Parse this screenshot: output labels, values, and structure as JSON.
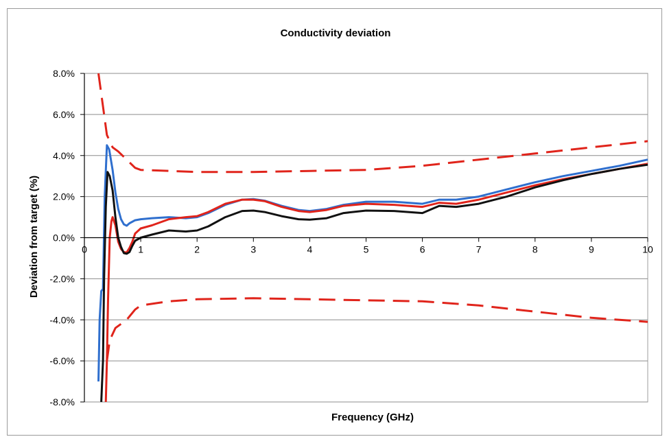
{
  "chart_data": {
    "type": "line",
    "title": "Conductivity deviation",
    "xlabel": "Frequency (GHz)",
    "ylabel": "Deviation from target (%)",
    "xlim": [
      0,
      10
    ],
    "ylim": [
      -8.0,
      8.0
    ],
    "x_ticks": [
      0,
      1,
      2,
      3,
      4,
      5,
      6,
      7,
      8,
      9,
      10
    ],
    "x_tick_labels": [
      "0",
      "1",
      "2",
      "3",
      "4",
      "5",
      "6",
      "7",
      "8",
      "9",
      "10"
    ],
    "y_ticks": [
      8.0,
      6.0,
      4.0,
      2.0,
      0.0,
      -2.0,
      -4.0,
      -6.0,
      -8.0
    ],
    "y_tick_labels": [
      "8.0%",
      "6.0%",
      "4.0%",
      "2.0%",
      "0.0%",
      "-2.0%",
      "-4.0%",
      "-6.0%",
      "-8.0%"
    ],
    "grid": "horizontal",
    "legend": "none",
    "series": [
      {
        "color": "#e0241b",
        "style": "dashed",
        "points": [
          [
            0.25,
            8.0
          ],
          [
            0.3,
            7.0
          ],
          [
            0.35,
            6.0
          ],
          [
            0.4,
            5.0
          ],
          [
            0.5,
            4.4
          ],
          [
            0.6,
            4.2
          ],
          [
            0.75,
            3.8
          ],
          [
            0.9,
            3.4
          ],
          [
            1.0,
            3.3
          ],
          [
            1.5,
            3.25
          ],
          [
            2.0,
            3.2
          ],
          [
            3.0,
            3.2
          ],
          [
            4.0,
            3.25
          ],
          [
            5.0,
            3.3
          ],
          [
            6.0,
            3.5
          ],
          [
            7.0,
            3.8
          ],
          [
            8.0,
            4.1
          ],
          [
            9.0,
            4.4
          ],
          [
            10.0,
            4.7
          ]
        ]
      },
      {
        "color": "#e0241b",
        "style": "dashed",
        "points": [
          [
            0.4,
            -6.0
          ],
          [
            0.45,
            -5.0
          ],
          [
            0.55,
            -4.4
          ],
          [
            0.75,
            -4.0
          ],
          [
            0.9,
            -3.5
          ],
          [
            1.0,
            -3.3
          ],
          [
            1.5,
            -3.1
          ],
          [
            2.0,
            -3.0
          ],
          [
            3.0,
            -2.95
          ],
          [
            4.0,
            -3.0
          ],
          [
            5.0,
            -3.05
          ],
          [
            6.0,
            -3.1
          ],
          [
            7.0,
            -3.3
          ],
          [
            8.0,
            -3.6
          ],
          [
            9.0,
            -3.9
          ],
          [
            10.0,
            -4.1
          ]
        ]
      },
      {
        "color": "#2f6fce",
        "style": "solid",
        "points": [
          [
            0.25,
            -7.0
          ],
          [
            0.27,
            -4.0
          ],
          [
            0.3,
            -2.6
          ],
          [
            0.33,
            -2.5
          ],
          [
            0.36,
            2.0
          ],
          [
            0.4,
            4.5
          ],
          [
            0.44,
            4.3
          ],
          [
            0.5,
            3.3
          ],
          [
            0.55,
            2.2
          ],
          [
            0.6,
            1.4
          ],
          [
            0.65,
            0.9
          ],
          [
            0.7,
            0.65
          ],
          [
            0.75,
            0.58
          ],
          [
            0.8,
            0.7
          ],
          [
            0.9,
            0.85
          ],
          [
            1.0,
            0.9
          ],
          [
            1.2,
            0.95
          ],
          [
            1.5,
            1.0
          ],
          [
            1.8,
            0.95
          ],
          [
            2.0,
            1.0
          ],
          [
            2.2,
            1.2
          ],
          [
            2.5,
            1.6
          ],
          [
            2.8,
            1.85
          ],
          [
            3.0,
            1.88
          ],
          [
            3.2,
            1.8
          ],
          [
            3.5,
            1.55
          ],
          [
            3.8,
            1.35
          ],
          [
            4.0,
            1.3
          ],
          [
            4.3,
            1.4
          ],
          [
            4.6,
            1.6
          ],
          [
            5.0,
            1.75
          ],
          [
            5.5,
            1.75
          ],
          [
            6.0,
            1.65
          ],
          [
            6.3,
            1.85
          ],
          [
            6.6,
            1.85
          ],
          [
            7.0,
            2.0
          ],
          [
            7.5,
            2.35
          ],
          [
            8.0,
            2.7
          ],
          [
            8.5,
            3.0
          ],
          [
            9.0,
            3.25
          ],
          [
            9.5,
            3.5
          ],
          [
            10.0,
            3.8
          ]
        ]
      },
      {
        "color": "#e0241b",
        "style": "solid",
        "points": [
          [
            0.38,
            -8.0
          ],
          [
            0.4,
            -6.0
          ],
          [
            0.42,
            -3.0
          ],
          [
            0.45,
            0.0
          ],
          [
            0.48,
            0.8
          ],
          [
            0.5,
            1.0
          ],
          [
            0.55,
            0.6
          ],
          [
            0.6,
            -0.2
          ],
          [
            0.65,
            -0.55
          ],
          [
            0.7,
            -0.7
          ],
          [
            0.75,
            -0.72
          ],
          [
            0.8,
            -0.5
          ],
          [
            0.85,
            -0.2
          ],
          [
            0.9,
            0.2
          ],
          [
            1.0,
            0.45
          ],
          [
            1.2,
            0.6
          ],
          [
            1.5,
            0.9
          ],
          [
            1.8,
            1.0
          ],
          [
            2.0,
            1.05
          ],
          [
            2.2,
            1.25
          ],
          [
            2.5,
            1.65
          ],
          [
            2.8,
            1.85
          ],
          [
            3.0,
            1.85
          ],
          [
            3.2,
            1.78
          ],
          [
            3.5,
            1.5
          ],
          [
            3.8,
            1.3
          ],
          [
            4.0,
            1.25
          ],
          [
            4.3,
            1.35
          ],
          [
            4.6,
            1.55
          ],
          [
            5.0,
            1.65
          ],
          [
            5.5,
            1.6
          ],
          [
            6.0,
            1.5
          ],
          [
            6.3,
            1.7
          ],
          [
            6.6,
            1.65
          ],
          [
            7.0,
            1.85
          ],
          [
            7.5,
            2.2
          ],
          [
            8.0,
            2.55
          ],
          [
            8.5,
            2.85
          ],
          [
            9.0,
            3.1
          ],
          [
            9.5,
            3.35
          ],
          [
            10.0,
            3.6
          ]
        ]
      },
      {
        "color": "#111111",
        "style": "solid",
        "points": [
          [
            0.3,
            -8.0
          ],
          [
            0.33,
            -6.0
          ],
          [
            0.35,
            -2.0
          ],
          [
            0.38,
            1.5
          ],
          [
            0.41,
            3.2
          ],
          [
            0.45,
            3.0
          ],
          [
            0.5,
            2.3
          ],
          [
            0.55,
            1.0
          ],
          [
            0.6,
            0.0
          ],
          [
            0.65,
            -0.45
          ],
          [
            0.7,
            -0.75
          ],
          [
            0.75,
            -0.78
          ],
          [
            0.8,
            -0.7
          ],
          [
            0.85,
            -0.4
          ],
          [
            0.9,
            -0.15
          ],
          [
            1.0,
            0.0
          ],
          [
            1.2,
            0.15
          ],
          [
            1.5,
            0.35
          ],
          [
            1.8,
            0.3
          ],
          [
            2.0,
            0.35
          ],
          [
            2.2,
            0.55
          ],
          [
            2.5,
            1.0
          ],
          [
            2.8,
            1.3
          ],
          [
            3.0,
            1.32
          ],
          [
            3.2,
            1.25
          ],
          [
            3.5,
            1.05
          ],
          [
            3.8,
            0.9
          ],
          [
            4.0,
            0.88
          ],
          [
            4.3,
            0.95
          ],
          [
            4.6,
            1.2
          ],
          [
            5.0,
            1.32
          ],
          [
            5.5,
            1.3
          ],
          [
            6.0,
            1.2
          ],
          [
            6.3,
            1.55
          ],
          [
            6.6,
            1.5
          ],
          [
            7.0,
            1.65
          ],
          [
            7.5,
            2.0
          ],
          [
            8.0,
            2.45
          ],
          [
            8.5,
            2.8
          ],
          [
            9.0,
            3.1
          ],
          [
            9.5,
            3.35
          ],
          [
            10.0,
            3.55
          ]
        ]
      }
    ]
  }
}
